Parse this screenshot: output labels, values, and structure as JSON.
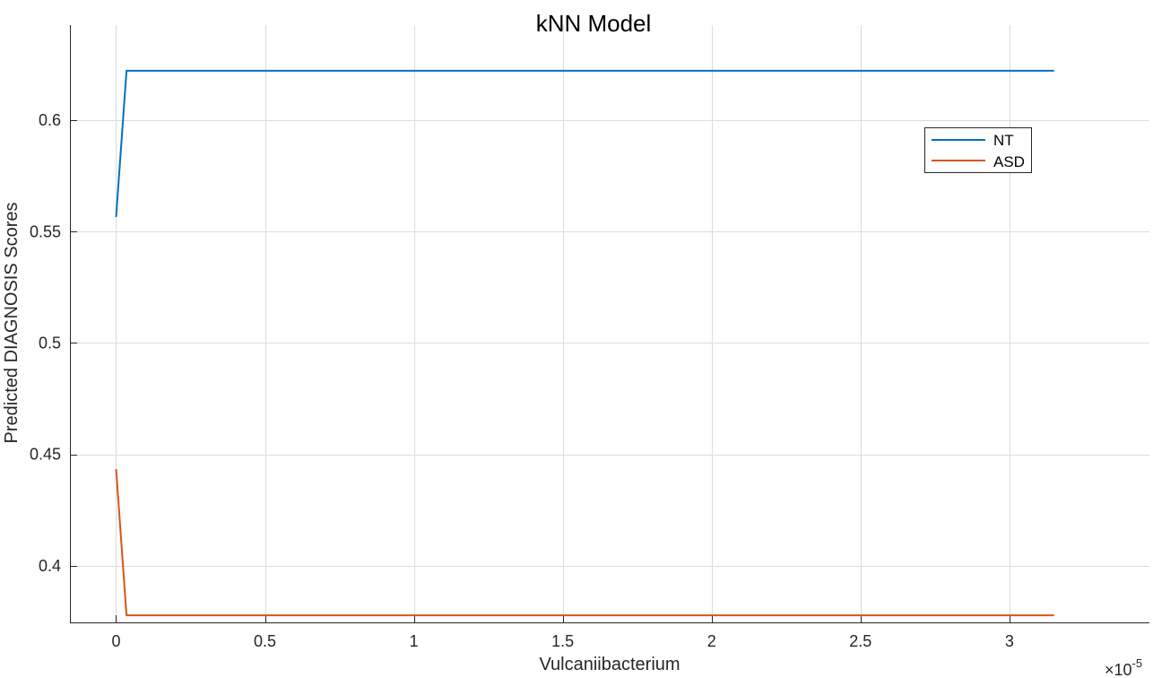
{
  "chart_data": {
    "type": "line",
    "title": "kNN Model",
    "xlabel": "Vulcaniibacterium",
    "ylabel": "Predicted DIAGNOSIS Scores",
    "x_exponent_label": "×10",
    "x_exponent_power": "-5",
    "xlim": [
      -0.155,
      3.47
    ],
    "ylim": [
      0.3746,
      0.6427
    ],
    "xticks": [
      0,
      0.5,
      1,
      1.5,
      2,
      2.5,
      3
    ],
    "xtick_labels": [
      "0",
      "0.5",
      "1",
      "1.5",
      "2",
      "2.5",
      "3"
    ],
    "yticks": [
      0.4,
      0.45,
      0.5,
      0.55,
      0.6
    ],
    "ytick_labels": [
      "0.4",
      "0.45",
      "0.5",
      "0.55",
      "0.6"
    ],
    "grid": true,
    "legend_position": "top-right",
    "series": [
      {
        "name": "NT",
        "color": "#0072BD",
        "x": [
          0,
          0.035,
          3.15
        ],
        "y": [
          0.5566,
          0.6222,
          0.6222
        ]
      },
      {
        "name": "ASD",
        "color": "#D95319",
        "x": [
          0,
          0.035,
          3.15
        ],
        "y": [
          0.4434,
          0.3778,
          0.3778
        ]
      }
    ]
  }
}
